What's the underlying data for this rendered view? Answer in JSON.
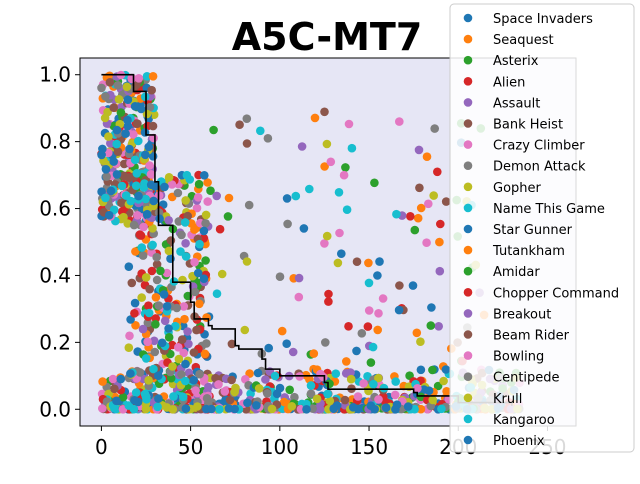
{
  "chart_data": {
    "type": "scatter",
    "title": "A5C-MT7",
    "xlabel": "",
    "ylabel": "",
    "xlim": [
      -12,
      266
    ],
    "ylim": [
      -0.05,
      1.05
    ],
    "x_ticks": [
      0,
      50,
      100,
      150,
      200,
      250
    ],
    "y_ticks": [
      0.0,
      0.2,
      0.4,
      0.6,
      0.8,
      1.0
    ],
    "x_tick_labels": [
      "0",
      "50",
      "100",
      "150",
      "200",
      "250"
    ],
    "y_tick_labels": [
      "0.0",
      "0.2",
      "0.4",
      "0.6",
      "0.8",
      "1.0"
    ],
    "grid": false,
    "legend_position": "upper-right outside axes",
    "background": "#e6e6f5",
    "series": [
      {
        "name": "Space Invaders",
        "color": "#1f77b4"
      },
      {
        "name": "Seaquest",
        "color": "#ff7f0e"
      },
      {
        "name": "Asterix",
        "color": "#2ca02c"
      },
      {
        "name": "Alien",
        "color": "#d62728"
      },
      {
        "name": "Assault",
        "color": "#9467bd"
      },
      {
        "name": "Bank Heist",
        "color": "#8c564b"
      },
      {
        "name": "Crazy Climber",
        "color": "#e377c2"
      },
      {
        "name": "Demon Attack",
        "color": "#7f7f7f"
      },
      {
        "name": "Gopher",
        "color": "#bcbd22"
      },
      {
        "name": "Name This Game",
        "color": "#17becf"
      },
      {
        "name": "Star Gunner",
        "color": "#1f77b4"
      },
      {
        "name": "Tutankham",
        "color": "#ff7f0e"
      },
      {
        "name": "Amidar",
        "color": "#2ca02c"
      },
      {
        "name": "Chopper Command",
        "color": "#d62728"
      },
      {
        "name": "Breakout",
        "color": "#9467bd"
      },
      {
        "name": "Beam Rider",
        "color": "#8c564b"
      },
      {
        "name": "Bowling",
        "color": "#e377c2"
      },
      {
        "name": "Centipede",
        "color": "#7f7f7f"
      },
      {
        "name": "Krull",
        "color": "#bcbd22"
      },
      {
        "name": "Kangaroo",
        "color": "#17becf"
      },
      {
        "name": "Phoenix",
        "color": "#1f77b4"
      }
    ],
    "approx_points_per_series": 70,
    "step_line": {
      "color": "#000000",
      "x": [
        0,
        18,
        25,
        30,
        32,
        40,
        50,
        52,
        60,
        62,
        75,
        77,
        90,
        92,
        100,
        125,
        127,
        175,
        177,
        200,
        230
      ],
      "y": [
        1.0,
        0.95,
        0.82,
        0.68,
        0.55,
        0.38,
        0.32,
        0.27,
        0.25,
        0.24,
        0.19,
        0.18,
        0.15,
        0.12,
        0.1,
        0.08,
        0.06,
        0.05,
        0.04,
        0.02,
        0.01
      ]
    }
  }
}
